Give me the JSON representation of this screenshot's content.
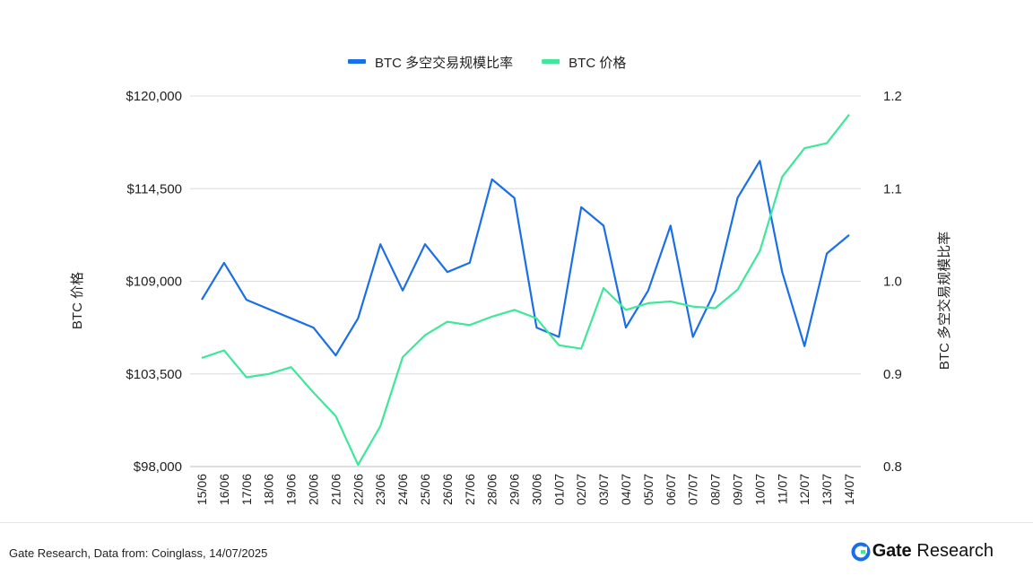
{
  "chart_data": {
    "type": "line",
    "categories": [
      "15/06",
      "16/06",
      "17/06",
      "18/06",
      "19/06",
      "20/06",
      "21/06",
      "22/06",
      "23/06",
      "24/06",
      "25/06",
      "26/06",
      "27/06",
      "28/06",
      "29/06",
      "30/06",
      "01/07",
      "02/07",
      "03/07",
      "04/07",
      "05/07",
      "06/07",
      "07/07",
      "08/07",
      "09/07",
      "10/07",
      "11/07",
      "12/07",
      "13/07",
      "14/07"
    ],
    "series": [
      {
        "name": "BTC 多空交易规模比率",
        "axis": "right",
        "color": "#1a6fe8",
        "values": [
          0.98,
          1.02,
          0.98,
          0.97,
          0.96,
          0.95,
          0.92,
          0.96,
          1.04,
          0.99,
          1.04,
          1.01,
          1.02,
          1.11,
          1.09,
          0.95,
          0.94,
          1.08,
          1.06,
          0.95,
          0.99,
          1.06,
          0.94,
          0.99,
          1.09,
          1.13,
          1.01,
          0.93,
          1.03,
          1.05
        ]
      },
      {
        "name": "BTC 价格",
        "axis": "left",
        "color": "#3ee79a",
        "values": [
          104450,
          104900,
          103300,
          103500,
          103900,
          102400,
          101000,
          98100,
          100400,
          104500,
          105800,
          106600,
          106400,
          106900,
          107300,
          106800,
          105200,
          105000,
          108600,
          107300,
          107700,
          107800,
          107500,
          107400,
          108500,
          110800,
          115200,
          116900,
          117200,
          118900
        ]
      }
    ],
    "y_left": {
      "label": "BTC 价格",
      "ticks": [
        "$98,000",
        "$103,500",
        "$109,000",
        "$114,500",
        "$120,000"
      ],
      "min": 98000,
      "max": 120000
    },
    "y_right": {
      "label": "BTC 多空交易规模比率",
      "ticks": [
        "0.8",
        "0.9",
        "1.0",
        "1.1",
        "1.2"
      ],
      "min": 0.8,
      "max": 1.2
    },
    "grid": true,
    "legend_position": "top-center"
  },
  "footer": {
    "source": "Gate Research, Data from: Coinglass, 14/07/2025",
    "brand_name": "Gate",
    "brand_sub": "Research",
    "brand_color": "#1a6fe8"
  }
}
